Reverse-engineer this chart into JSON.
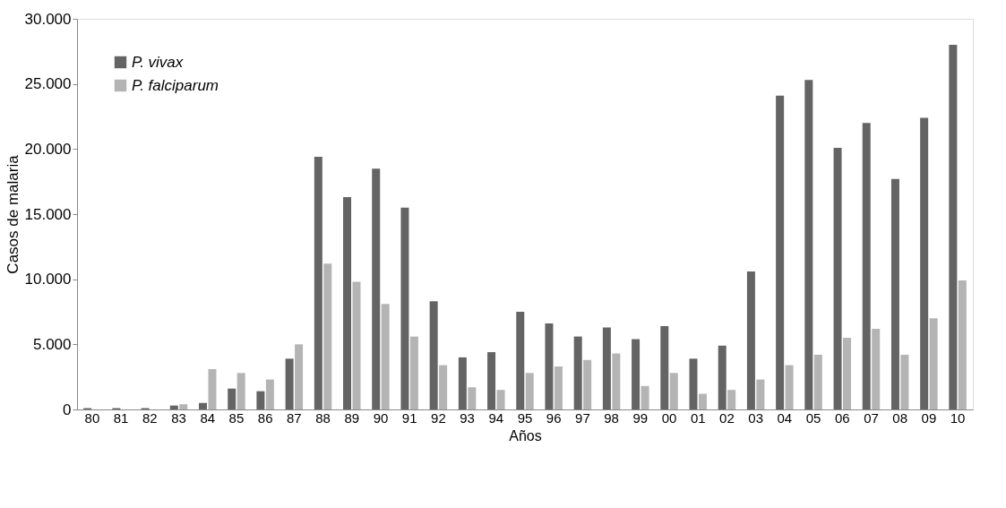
{
  "chart_data": {
    "type": "bar",
    "xlabel": "Años",
    "ylabel": "Casos de malaria",
    "categories": [
      "80",
      "81",
      "82",
      "83",
      "84",
      "85",
      "86",
      "87",
      "88",
      "89",
      "90",
      "91",
      "92",
      "93",
      "94",
      "95",
      "96",
      "97",
      "98",
      "99",
      "00",
      "01",
      "02",
      "03",
      "04",
      "05",
      "06",
      "07",
      "08",
      "09",
      "10"
    ],
    "series": [
      {
        "name": "P. vivax",
        "color": "#646464",
        "values": [
          100,
          100,
          100,
          300,
          500,
          1600,
          1400,
          3900,
          19400,
          16300,
          18500,
          15500,
          8300,
          4000,
          4400,
          7500,
          6600,
          5600,
          6300,
          5400,
          6400,
          3900,
          4900,
          10600,
          24100,
          25300,
          20100,
          22000,
          17700,
          22400,
          28000
        ]
      },
      {
        "name": "P. falciparum",
        "color": "#b4b4b4",
        "values": [
          null,
          null,
          null,
          400,
          3100,
          2800,
          2300,
          5000,
          11200,
          9800,
          8100,
          5600,
          3400,
          1700,
          1500,
          2800,
          3300,
          3800,
          4300,
          1800,
          2800,
          1200,
          1500,
          2300,
          3400,
          4200,
          5500,
          6200,
          4200,
          7000,
          9900
        ]
      }
    ],
    "ylim": [
      0,
      30000
    ],
    "yticks": [
      {
        "value": 0,
        "label": "0"
      },
      {
        "value": 5000,
        "label": "5.000"
      },
      {
        "value": 10000,
        "label": "10.000"
      },
      {
        "value": 15000,
        "label": "15.000"
      },
      {
        "value": 20000,
        "label": "20.000"
      },
      {
        "value": 25000,
        "label": "25.000"
      },
      {
        "value": 30000,
        "label": "30.000"
      }
    ],
    "grid": false,
    "legend": "top left"
  }
}
